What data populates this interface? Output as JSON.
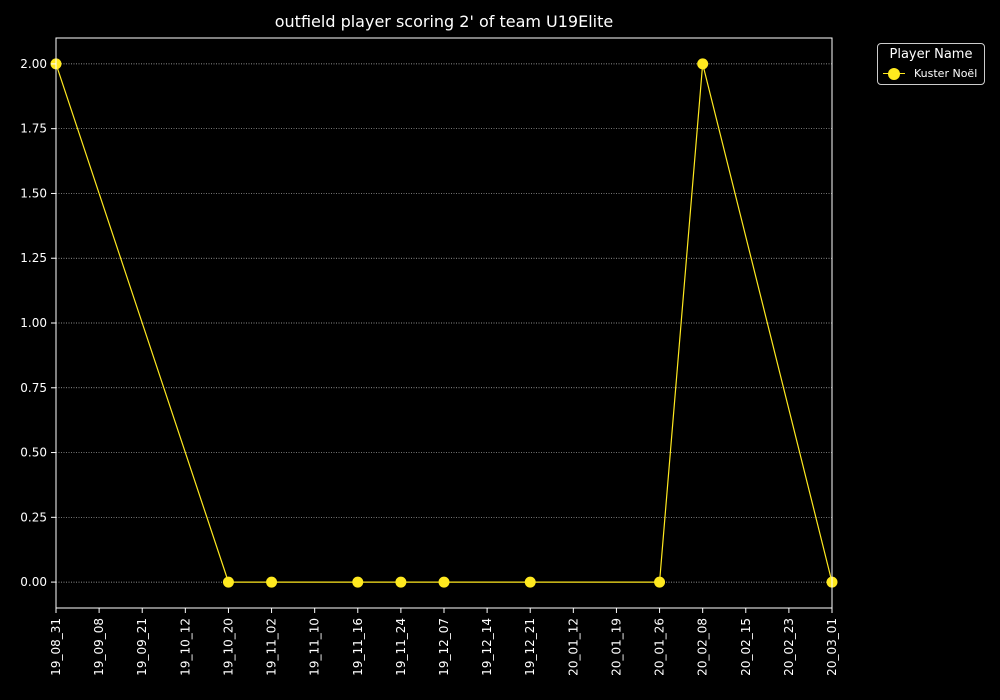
{
  "chart_data": {
    "type": "line",
    "title": "outfield player scoring 2' of team U19Elite",
    "xlabel": "",
    "ylabel": "",
    "categories": [
      "19_08_31",
      "19_09_08",
      "19_09_21",
      "19_10_12",
      "19_10_20",
      "19_11_02",
      "19_11_10",
      "19_11_16",
      "19_11_24",
      "19_12_07",
      "19_12_14",
      "19_12_21",
      "20_01_12",
      "20_01_19",
      "20_01_26",
      "20_02_08",
      "20_02_15",
      "20_02_23",
      "20_03_01"
    ],
    "yticks": [
      "0.00",
      "0.25",
      "0.50",
      "0.75",
      "1.00",
      "1.25",
      "1.50",
      "1.75",
      "2.00"
    ],
    "ylim": [
      -0.1,
      2.1
    ],
    "grid": "horizontal dotted",
    "legend": {
      "title": "Player Name",
      "position": "outside-top-right"
    },
    "series": [
      {
        "name": "Kuster Noël",
        "color": "#ffe91f",
        "points": [
          {
            "x": "19_08_31",
            "y": 2
          },
          {
            "x": "19_10_20",
            "y": 0
          },
          {
            "x": "19_11_02",
            "y": 0
          },
          {
            "x": "19_11_16",
            "y": 0
          },
          {
            "x": "19_11_24",
            "y": 0
          },
          {
            "x": "19_12_07",
            "y": 0
          },
          {
            "x": "19_12_21",
            "y": 0
          },
          {
            "x": "20_01_26",
            "y": 0
          },
          {
            "x": "20_02_08",
            "y": 2
          },
          {
            "x": "20_03_01",
            "y": 0
          }
        ]
      }
    ]
  }
}
